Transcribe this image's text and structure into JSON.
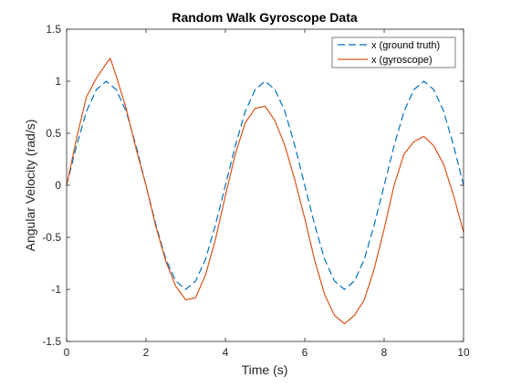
{
  "chart_data": {
    "type": "line",
    "title": "Random Walk Gyroscope Data",
    "xlabel": "Time (s)",
    "ylabel": "Angular Velocity (rad/s)",
    "xlim": [
      0,
      10
    ],
    "ylim": [
      -1.5,
      1.5
    ],
    "xticks": [
      0,
      2,
      4,
      6,
      8,
      10
    ],
    "xtick_labels": [
      "0",
      "2",
      "4",
      "6",
      "8",
      "10"
    ],
    "yticks": [
      -1.5,
      -1,
      -0.5,
      0,
      0.5,
      1,
      1.5
    ],
    "ytick_labels": [
      "-1.5",
      "-1",
      "-0.5",
      "0",
      "0.5",
      "1",
      "1.5"
    ],
    "grid": false,
    "legend_position": "top-right",
    "series": [
      {
        "name": "x (ground truth)",
        "style": "dashed",
        "color": "#0072BD",
        "x": [
          0,
          0.25,
          0.5,
          0.75,
          1,
          1.25,
          1.5,
          1.75,
          2,
          2.25,
          2.5,
          2.75,
          3,
          3.25,
          3.5,
          3.75,
          4,
          4.25,
          4.5,
          4.75,
          5,
          5.25,
          5.5,
          5.75,
          6,
          6.25,
          6.5,
          6.75,
          7,
          7.25,
          7.5,
          7.75,
          8,
          8.25,
          8.5,
          8.75,
          9,
          9.25,
          9.5,
          9.75,
          10
        ],
        "y": [
          0,
          0.38,
          0.71,
          0.92,
          1.0,
          0.92,
          0.71,
          0.38,
          0,
          -0.38,
          -0.71,
          -0.92,
          -1.0,
          -0.92,
          -0.71,
          -0.38,
          0,
          0.38,
          0.71,
          0.92,
          1.0,
          0.92,
          0.71,
          0.38,
          0,
          -0.38,
          -0.71,
          -0.92,
          -1.0,
          -0.92,
          -0.71,
          -0.38,
          0,
          0.38,
          0.71,
          0.92,
          1.0,
          0.92,
          0.71,
          0.38,
          0
        ]
      },
      {
        "name": "x (gyroscope)",
        "style": "solid",
        "color": "#D95319",
        "x": [
          0,
          0.25,
          0.5,
          0.75,
          1,
          1.1,
          1.25,
          1.5,
          1.75,
          2,
          2.25,
          2.5,
          2.75,
          3,
          3.25,
          3.5,
          3.75,
          4,
          4.25,
          4.5,
          4.75,
          5,
          5.25,
          5.5,
          5.75,
          6,
          6.25,
          6.5,
          6.75,
          7,
          7.25,
          7.5,
          7.75,
          8,
          8.25,
          8.5,
          8.75,
          9,
          9.25,
          9.5,
          9.75,
          10
        ],
        "y": [
          0,
          0.45,
          0.85,
          1.03,
          1.17,
          1.22,
          1.05,
          0.74,
          0.35,
          0.0,
          -0.4,
          -0.73,
          -0.97,
          -1.1,
          -1.08,
          -0.86,
          -0.52,
          -0.1,
          0.3,
          0.6,
          0.74,
          0.76,
          0.62,
          0.38,
          0.05,
          -0.32,
          -0.72,
          -1.05,
          -1.25,
          -1.33,
          -1.25,
          -1.1,
          -0.8,
          -0.42,
          0.0,
          0.3,
          0.42,
          0.47,
          0.38,
          0.2,
          -0.1,
          -0.45
        ]
      }
    ]
  }
}
